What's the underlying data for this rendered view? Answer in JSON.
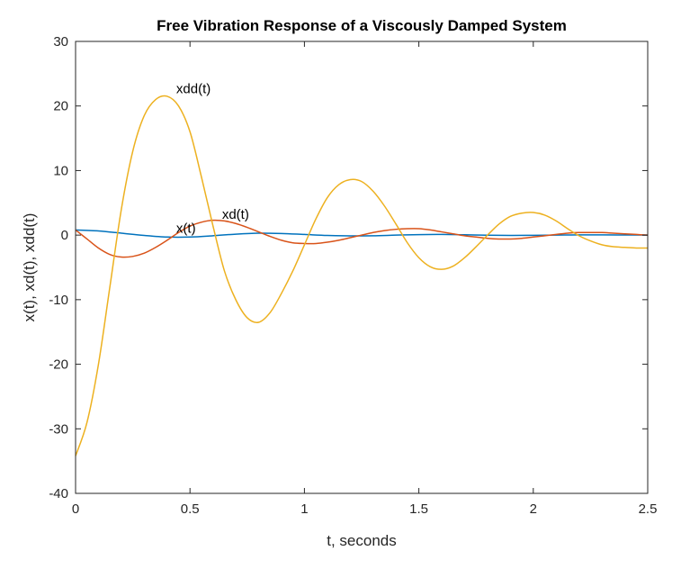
{
  "chart_data": {
    "type": "line",
    "title": "Free Vibration Response of a Viscously Damped System",
    "xlabel": "t, seconds",
    "ylabel": "x(t), xd(t), xdd(t)",
    "xlim": [
      0,
      2.5
    ],
    "ylim": [
      -40,
      30
    ],
    "xticks": [
      0,
      0.5,
      1,
      1.5,
      2,
      2.5
    ],
    "xtick_labels": [
      "0",
      "0.5",
      "1",
      "1.5",
      "2",
      "2.5"
    ],
    "yticks": [
      -40,
      -30,
      -20,
      -10,
      0,
      10,
      20,
      30
    ],
    "ytick_labels": [
      "-40",
      "-30",
      "-20",
      "-10",
      "0",
      "10",
      "20",
      "30"
    ],
    "grid": false,
    "legend": "none",
    "series": [
      {
        "name": "x(t)",
        "color": "#0072BD",
        "x": [
          0,
          0.1,
          0.2,
          0.3,
          0.4,
          0.5,
          0.6,
          0.7,
          0.8,
          0.9,
          1.0,
          1.1,
          1.2,
          1.3,
          1.4,
          1.5,
          1.6,
          1.7,
          1.8,
          1.9,
          2.0,
          2.1,
          2.2,
          2.3,
          2.4,
          2.5
        ],
        "values": [
          0.8,
          0.65,
          0.3,
          -0.05,
          -0.3,
          -0.3,
          -0.1,
          0.15,
          0.3,
          0.25,
          0.1,
          -0.05,
          -0.12,
          -0.1,
          0.0,
          0.08,
          0.1,
          0.05,
          -0.02,
          -0.05,
          -0.03,
          0.0,
          0.03,
          0.04,
          0.02,
          0.0
        ]
      },
      {
        "name": "xd(t)",
        "color": "#D95319",
        "x": [
          0,
          0.05,
          0.1,
          0.15,
          0.2,
          0.25,
          0.3,
          0.35,
          0.4,
          0.45,
          0.5,
          0.55,
          0.6,
          0.65,
          0.7,
          0.75,
          0.8,
          0.85,
          0.9,
          0.95,
          1.0,
          1.05,
          1.1,
          1.15,
          1.2,
          1.25,
          1.3,
          1.35,
          1.4,
          1.45,
          1.5,
          1.55,
          1.6,
          1.65,
          1.7,
          1.75,
          1.8,
          1.85,
          1.9,
          1.95,
          2.0,
          2.05,
          2.1,
          2.15,
          2.2,
          2.25,
          2.3,
          2.35,
          2.4,
          2.45,
          2.5
        ],
        "values": [
          0.8,
          -0.6,
          -2.0,
          -3.0,
          -3.4,
          -3.3,
          -2.8,
          -1.9,
          -0.8,
          0.4,
          1.4,
          2.0,
          2.3,
          2.2,
          1.8,
          1.2,
          0.5,
          -0.2,
          -0.8,
          -1.2,
          -1.3,
          -1.3,
          -1.1,
          -0.8,
          -0.4,
          0.0,
          0.4,
          0.7,
          0.9,
          1.0,
          1.0,
          0.8,
          0.5,
          0.2,
          -0.1,
          -0.3,
          -0.5,
          -0.6,
          -0.6,
          -0.5,
          -0.3,
          -0.1,
          0.1,
          0.3,
          0.4,
          0.4,
          0.4,
          0.3,
          0.2,
          0.1,
          0.0
        ]
      },
      {
        "name": "xdd(t)",
        "color": "#EDB120",
        "x": [
          0,
          0.05,
          0.1,
          0.15,
          0.2,
          0.25,
          0.3,
          0.35,
          0.4,
          0.45,
          0.5,
          0.55,
          0.6,
          0.65,
          0.7,
          0.75,
          0.8,
          0.85,
          0.9,
          0.95,
          1.0,
          1.05,
          1.1,
          1.15,
          1.2,
          1.25,
          1.3,
          1.35,
          1.4,
          1.45,
          1.5,
          1.55,
          1.6,
          1.65,
          1.7,
          1.75,
          1.8,
          1.85,
          1.9,
          1.95,
          2.0,
          2.05,
          2.1,
          2.15,
          2.2,
          2.25,
          2.3,
          2.35,
          2.4,
          2.45,
          2.5
        ],
        "values": [
          -34.2,
          -29.0,
          -20.0,
          -8.0,
          4.0,
          13.0,
          18.5,
          21.0,
          21.5,
          20.0,
          16.0,
          9.0,
          1.5,
          -5.5,
          -10.0,
          -12.8,
          -13.5,
          -12.0,
          -9.0,
          -5.5,
          -1.5,
          2.5,
          5.8,
          7.8,
          8.6,
          8.3,
          6.8,
          4.5,
          1.7,
          -1.2,
          -3.5,
          -4.9,
          -5.3,
          -4.8,
          -3.5,
          -1.8,
          0.0,
          1.7,
          2.9,
          3.4,
          3.5,
          3.1,
          2.2,
          1.0,
          -0.1,
          -0.9,
          -1.5,
          -1.8,
          -1.9,
          -2.0,
          -2.0
        ]
      }
    ],
    "annotations": [
      {
        "text": "xdd(t)",
        "x": 0.44,
        "y": 22.0
      },
      {
        "text": "xd(t)",
        "x": 0.64,
        "y": 2.5
      },
      {
        "text": "x(t)",
        "x": 0.44,
        "y": 0.4
      }
    ]
  }
}
